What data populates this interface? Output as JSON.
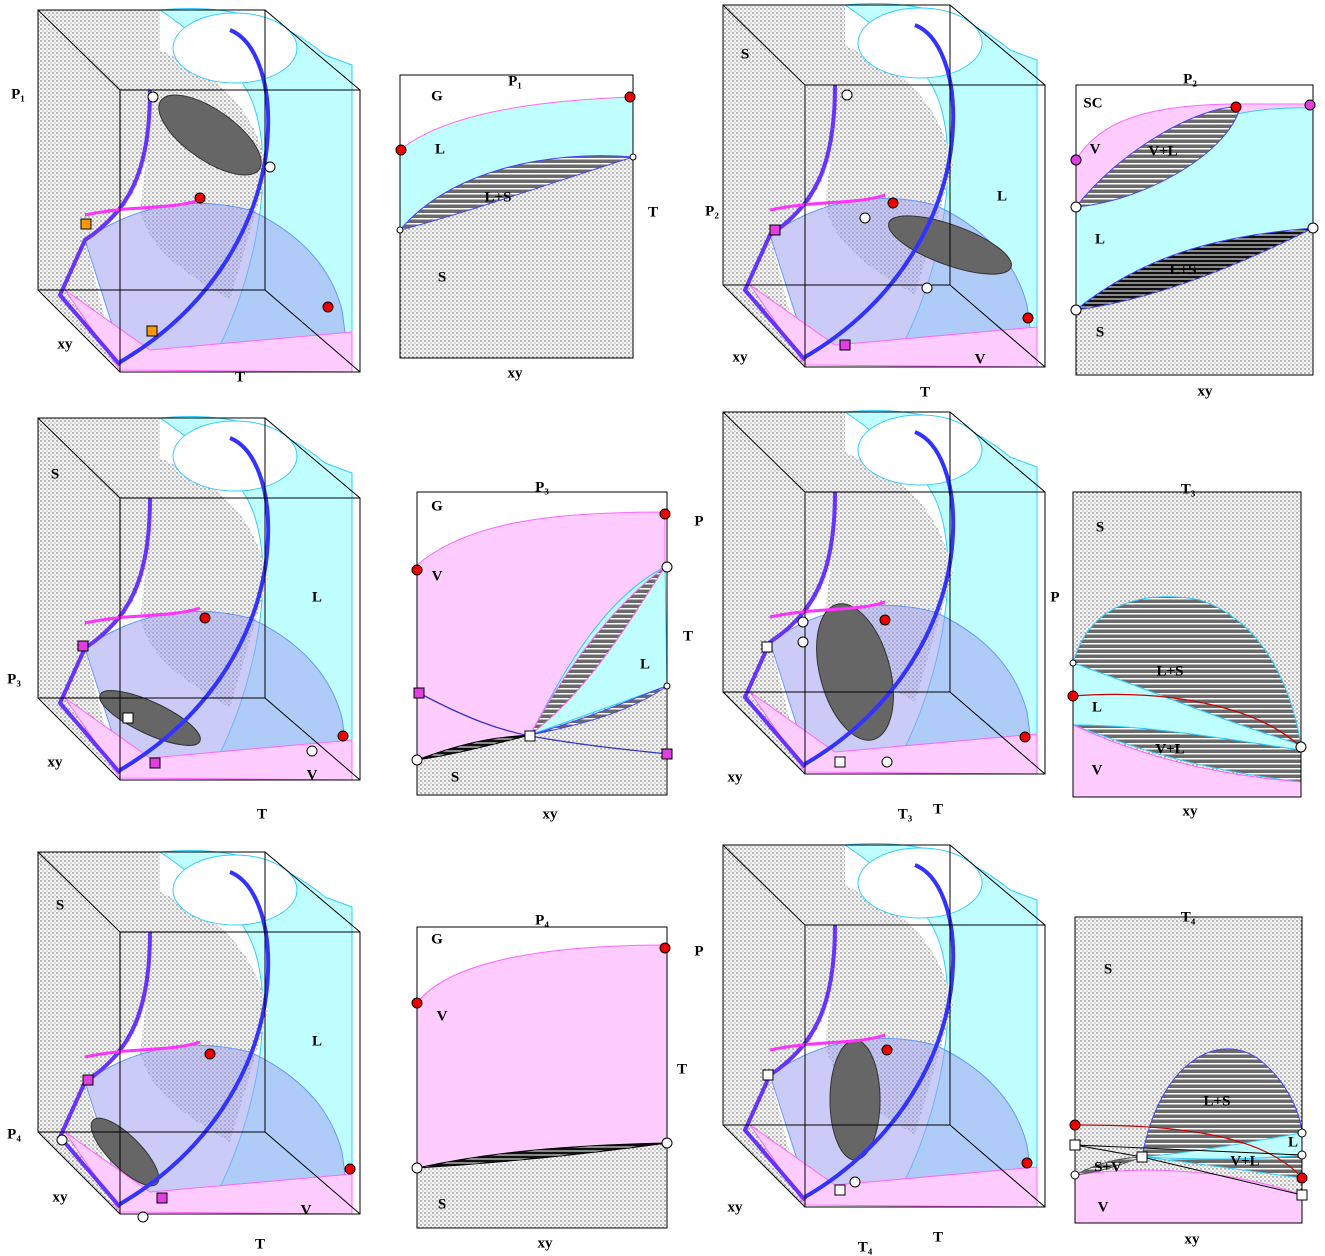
{
  "panels": [
    {
      "labels": [
        "P₁",
        "xy",
        "T"
      ]
    },
    {
      "labels": [
        "P₁",
        "G",
        "L",
        "L+S",
        "T",
        "S",
        "xy"
      ]
    },
    {
      "labels": [
        "S",
        "P₂",
        "L",
        "xy",
        "T",
        "V"
      ]
    },
    {
      "labels": [
        "P₂",
        "SC",
        "V",
        "V+L",
        "L",
        "L+S",
        "S",
        "xy"
      ]
    },
    {
      "labels": [
        "S",
        "L",
        "P₃",
        "xy",
        "T",
        "V"
      ]
    },
    {
      "labels": [
        "P₃",
        "G",
        "V",
        "P",
        "T",
        "L",
        "S",
        "xy"
      ]
    },
    {
      "labels": [
        "xy",
        "T₃",
        "T"
      ]
    },
    {
      "labels": [
        "T₃",
        "S",
        "P",
        "L+S",
        "L",
        "V+L",
        "V",
        "xy"
      ]
    },
    {
      "labels": [
        "S",
        "L",
        "P₄",
        "xy",
        "T",
        "V"
      ]
    },
    {
      "labels": [
        "P₄",
        "G",
        "V",
        "P",
        "T",
        "S",
        "xy"
      ]
    },
    {
      "labels": [
        "xy",
        "T₄",
        "T"
      ]
    },
    {
      "labels": [
        "T₄",
        "S",
        "L+S",
        "L",
        "S+V",
        "V+L",
        "V",
        "xy"
      ]
    }
  ]
}
